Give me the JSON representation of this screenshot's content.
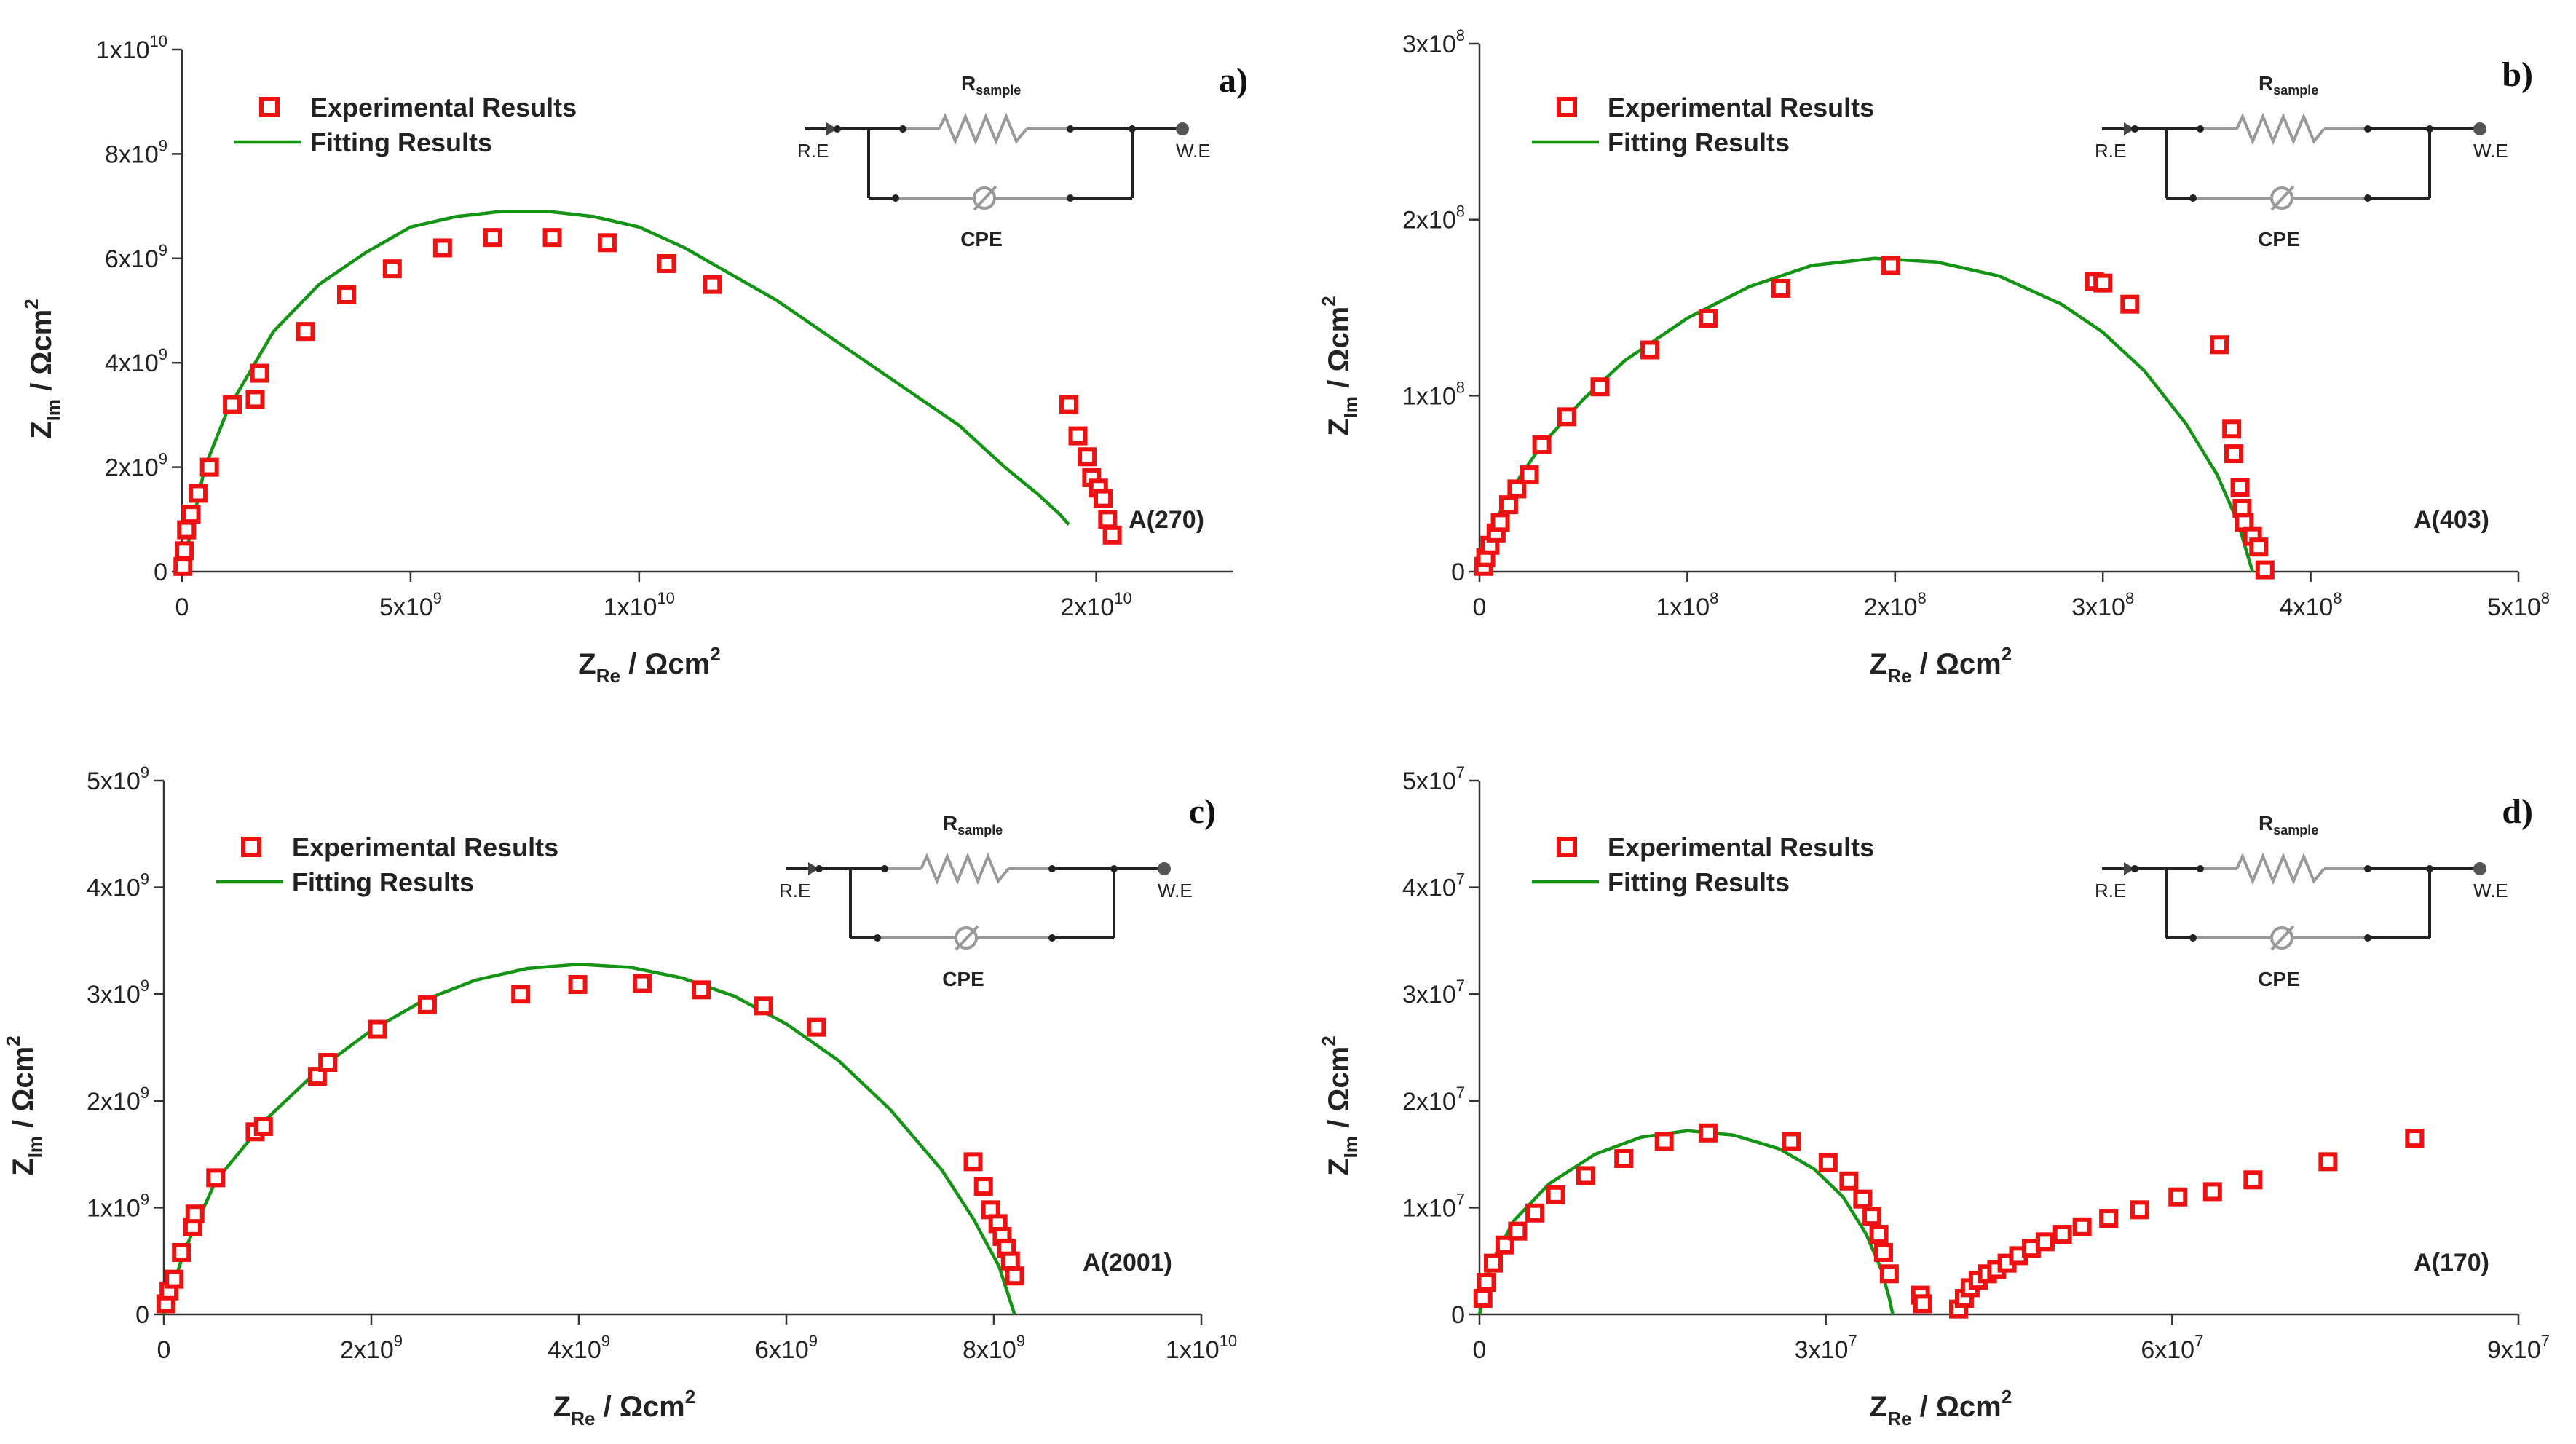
{
  "legend": {
    "experimental": "Experimental Results",
    "fitting": "Fitting Results"
  },
  "axis_titles": {
    "x_main": "Z",
    "x_sub": "Re",
    "x_unit": " / Ωcm",
    "y_main": "Z",
    "y_sub": "Im",
    "y_unit": " / Ωcm",
    "unit_exp": "2"
  },
  "circuit": {
    "left_terminal": "R.E",
    "right_terminal": "W.E",
    "resistor_main": "R",
    "resistor_sub": "sample",
    "cpe_label": "CPE"
  },
  "colors": {
    "marker": "#ee1111",
    "fit": "#149414"
  },
  "chart_data": [
    {
      "type": "scatter",
      "panel_label": "a)",
      "sample_label": "A(270)",
      "xlim": [
        0,
        23000000000.0
      ],
      "ylim": [
        0,
        10000000000.0
      ],
      "xticks": [
        {
          "m": "0",
          "e": ""
        },
        {
          "m": "5x10",
          "e": "9"
        },
        {
          "m": "1x10",
          "e": "10"
        },
        {
          "m": "2x10",
          "e": "10"
        }
      ],
      "xtick_values": [
        0,
        5000000000.0,
        10000000000.0,
        20000000000.0
      ],
      "yticks": [
        {
          "m": "0",
          "e": ""
        },
        {
          "m": "2x10",
          "e": "9"
        },
        {
          "m": "4x10",
          "e": "9"
        },
        {
          "m": "6x10",
          "e": "9"
        },
        {
          "m": "8x10",
          "e": "9"
        },
        {
          "m": "1x10",
          "e": "10"
        }
      ],
      "ytick_values": [
        0,
        2000000000.0,
        4000000000.0,
        6000000000.0,
        8000000000.0,
        10000000000.0
      ],
      "experimental": {
        "x": [
          20000000.0,
          50000000.0,
          100000000.0,
          200000000.0,
          350000000.0,
          600000000.0,
          1100000000.0,
          1600000000.0,
          1700000000.0,
          2700000000.0,
          3600000000.0,
          4600000000.0,
          5700000000.0,
          6800000000.0,
          8100000000.0,
          9300000000.0,
          10600000000.0,
          11600000000.0,
          19400000000.0,
          19600000000.0,
          19800000000.0,
          19900000000.0,
          20050000000.0,
          20150000000.0,
          20250000000.0,
          20350000000.0
        ],
        "y": [
          100000000.0,
          400000000.0,
          800000000.0,
          1100000000.0,
          1500000000.0,
          2000000000.0,
          3200000000.0,
          3300000000.0,
          3800000000.0,
          4600000000.0,
          5300000000.0,
          5800000000.0,
          6200000000.0,
          6400000000.0,
          6400000000.0,
          6300000000.0,
          5900000000.0,
          5500000000.0,
          3200000000.0,
          2600000000.0,
          2200000000.0,
          1800000000.0,
          1600000000.0,
          1400000000.0,
          1000000000.0,
          700000000.0
        ]
      },
      "fit": {
        "x": [
          0,
          500000000.0,
          1000000000.0,
          2000000000.0,
          3000000000.0,
          4000000000.0,
          5000000000.0,
          6000000000.0,
          7000000000.0,
          8000000000.0,
          9000000000.0,
          10000000000.0,
          11000000000.0,
          12000000000.0,
          13000000000.0,
          14000000000.0,
          15000000000.0,
          16000000000.0,
          17000000000.0,
          18000000000.0,
          18700000000.0,
          19200000000.0,
          19400000000.0
        ],
        "y": [
          0,
          2000000000.0,
          3100000000.0,
          4600000000.0,
          5500000000.0,
          6100000000.0,
          6600000000.0,
          6800000000.0,
          6900000000.0,
          6900000000.0,
          6800000000.0,
          6600000000.0,
          6200000000.0,
          5700000000.0,
          5200000000.0,
          4600000000.0,
          4000000000.0,
          3400000000.0,
          2800000000.0,
          2000000000.0,
          1500000000.0,
          1100000000.0,
          900000000.0
        ]
      }
    },
    {
      "type": "scatter",
      "panel_label": "b)",
      "sample_label": "A(403)",
      "xlim": [
        0,
        500000000.0
      ],
      "ylim": [
        0,
        300000000.0
      ],
      "xticks": [
        {
          "m": "0",
          "e": ""
        },
        {
          "m": "1x10",
          "e": "8"
        },
        {
          "m": "2x10",
          "e": "8"
        },
        {
          "m": "3x10",
          "e": "8"
        },
        {
          "m": "4x10",
          "e": "8"
        },
        {
          "m": "5x10",
          "e": "8"
        }
      ],
      "xtick_values": [
        0,
        100000000.0,
        200000000.0,
        300000000.0,
        400000000.0,
        500000000.0
      ],
      "yticks": [
        {
          "m": "0",
          "e": ""
        },
        {
          "m": "1x10",
          "e": "8"
        },
        {
          "m": "2x10",
          "e": "8"
        },
        {
          "m": "3x10",
          "e": "8"
        }
      ],
      "ytick_values": [
        0,
        100000000.0,
        200000000.0,
        300000000.0
      ],
      "experimental": {
        "x": [
          2000000.0,
          3000000.0,
          5000000.0,
          8000000.0,
          10000000.0,
          14000000.0,
          18000000.0,
          24000000.0,
          30000000.0,
          42000000.0,
          58000000.0,
          82000000.0,
          110000000.0,
          145000000.0,
          198000000.0,
          296000000.0,
          300000000.0,
          313000000.0,
          356000000.0,
          362000000.0,
          363000000.0,
          366000000.0,
          367000000.0,
          368000000.0,
          372000000.0,
          375000000.0,
          378000000.0
        ],
        "y": [
          3000000.0,
          8000000.0,
          15000000.0,
          22000000.0,
          28000000.0,
          38000000.0,
          47000000.0,
          55000000.0,
          72000000.0,
          88000000.0,
          105000000.0,
          126000000.0,
          144000000.0,
          161000000.0,
          174000000.0,
          165000000.0,
          164000000.0,
          152000000.0,
          129000000.0,
          81000000.0,
          67000000.0,
          48000000.0,
          36000000.0,
          28000000.0,
          20000000.0,
          14000000.0,
          1000000.0
        ]
      },
      "fit": {
        "x": [
          0,
          5000000.0,
          10000000.0,
          20000000.0,
          30000000.0,
          50000000.0,
          70000000.0,
          100000000.0,
          130000000.0,
          160000000.0,
          190000000.0,
          220000000.0,
          250000000.0,
          280000000.0,
          300000000.0,
          320000000.0,
          340000000.0,
          355000000.0,
          365000000.0,
          372000000.0
        ],
        "y": [
          0,
          20000000.0,
          34000000.0,
          55000000.0,
          72000000.0,
          98000000.0,
          120000000.0,
          144000000.0,
          162000000.0,
          174000000.0,
          178000000.0,
          176000000.0,
          168000000.0,
          152000000.0,
          136000000.0,
          114000000.0,
          84000000.0,
          55000000.0,
          28000000.0,
          0
        ]
      }
    },
    {
      "type": "scatter",
      "panel_label": "c)",
      "sample_label": "A(2001)",
      "xlim": [
        0,
        10000000000.0
      ],
      "ylim": [
        0,
        5000000000.0
      ],
      "xticks": [
        {
          "m": "0",
          "e": ""
        },
        {
          "m": "2x10",
          "e": "9"
        },
        {
          "m": "4x10",
          "e": "9"
        },
        {
          "m": "6x10",
          "e": "9"
        },
        {
          "m": "8x10",
          "e": "9"
        },
        {
          "m": "1x10",
          "e": "10"
        }
      ],
      "xtick_values": [
        0,
        2000000000.0,
        4000000000.0,
        6000000000.0,
        8000000000.0,
        10000000000.0
      ],
      "yticks": [
        {
          "m": "0",
          "e": ""
        },
        {
          "m": "1x10",
          "e": "9"
        },
        {
          "m": "2x10",
          "e": "9"
        },
        {
          "m": "3x10",
          "e": "9"
        },
        {
          "m": "4x10",
          "e": "9"
        },
        {
          "m": "5x10",
          "e": "9"
        }
      ],
      "ytick_values": [
        0,
        1000000000.0,
        2000000000.0,
        3000000000.0,
        4000000000.0,
        5000000000.0
      ],
      "experimental": {
        "x": [
          20000000.0,
          50000000.0,
          100000000.0,
          170000000.0,
          280000000.0,
          300000000.0,
          500000000.0,
          880000000.0,
          960000000.0,
          1480000000.0,
          1580000000.0,
          2060000000.0,
          2540000000.0,
          3440000000.0,
          3990000000.0,
          4610000000.0,
          5180000000.0,
          5780000000.0,
          6290000000.0,
          7800000000.0,
          7900000000.0,
          7970000000.0,
          8040000000.0,
          8080000000.0,
          8120000000.0,
          8160000000.0,
          8200000000.0
        ],
        "y": [
          100000000.0,
          220000000.0,
          330000000.0,
          580000000.0,
          820000000.0,
          940000000.0,
          1280000000.0,
          1710000000.0,
          1760000000.0,
          2230000000.0,
          2360000000.0,
          2670000000.0,
          2900000000.0,
          3000000000.0,
          3090000000.0,
          3100000000.0,
          3040000000.0,
          2890000000.0,
          2690000000.0,
          1430000000.0,
          1200000000.0,
          980000000.0,
          850000000.0,
          730000000.0,
          620000000.0,
          500000000.0,
          360000000.0
        ]
      },
      "fit": {
        "x": [
          0,
          200000000.0,
          500000000.0,
          1000000000.0,
          1500000000.0,
          2000000000.0,
          2500000000.0,
          3000000000.0,
          3500000000.0,
          4000000000.0,
          4500000000.0,
          5000000000.0,
          5500000000.0,
          6000000000.0,
          6500000000.0,
          7000000000.0,
          7500000000.0,
          7800000000.0,
          8050000000.0,
          8200000000.0
        ],
        "y": [
          0,
          600000000.0,
          1250000000.0,
          1840000000.0,
          2300000000.0,
          2660000000.0,
          2940000000.0,
          3130000000.0,
          3240000000.0,
          3280000000.0,
          3250000000.0,
          3150000000.0,
          2980000000.0,
          2720000000.0,
          2380000000.0,
          1920000000.0,
          1350000000.0,
          900000000.0,
          450000000.0,
          0
        ]
      }
    },
    {
      "type": "scatter",
      "panel_label": "d)",
      "sample_label": "A(170)",
      "xlim": [
        0,
        90000000.0
      ],
      "ylim": [
        0,
        50000000.0
      ],
      "xticks": [
        {
          "m": "0",
          "e": ""
        },
        {
          "m": "3x10",
          "e": "7"
        },
        {
          "m": "6x10",
          "e": "7"
        },
        {
          "m": "9x10",
          "e": "7"
        }
      ],
      "xtick_values": [
        0,
        30000000.0,
        60000000.0,
        90000000.0
      ],
      "yticks": [
        {
          "m": "0",
          "e": ""
        },
        {
          "m": "1x10",
          "e": "7"
        },
        {
          "m": "2x10",
          "e": "7"
        },
        {
          "m": "3x10",
          "e": "7"
        },
        {
          "m": "4x10",
          "e": "7"
        },
        {
          "m": "5x10",
          "e": "7"
        }
      ],
      "ytick_values": [
        0,
        10000000.0,
        20000000.0,
        30000000.0,
        40000000.0,
        50000000.0
      ],
      "experimental": {
        "x": [
          300000.0,
          600000.0,
          1200000.0,
          2200000.0,
          3300000.0,
          4800000.0,
          6600000.0,
          9200000.0,
          12500000.0,
          16000000.0,
          19800000.0,
          27000000.0,
          30200000.0,
          32000000.0,
          33200000.0,
          34000000.0,
          34600000.0,
          35000000.0,
          35500000.0,
          38200000.0,
          38400000.0,
          41500000.0,
          42000000.0,
          42500000.0,
          43200000.0,
          44000000.0,
          44800000.0,
          45700000.0,
          46700000.0,
          47800000.0,
          49000000.0,
          50500000.0,
          52200000.0,
          54500000.0,
          57200000.0,
          60500000.0,
          63500000.0,
          67000000.0,
          73500000.0,
          81000000.0
        ],
        "y": [
          1500000.0,
          3000000.0,
          4800000.0,
          6500000.0,
          7800000.0,
          9500000.0,
          11200000.0,
          13000000.0,
          14600000.0,
          16200000.0,
          17000000.0,
          16200000.0,
          14200000.0,
          12500000.0,
          10800000.0,
          9200000.0,
          7500000.0,
          5800000.0,
          3800000.0,
          1800000.0,
          1000000.0,
          500000.0,
          1500000.0,
          2500000.0,
          3200000.0,
          3800000.0,
          4200000.0,
          4800000.0,
          5500000.0,
          6200000.0,
          6800000.0,
          7500000.0,
          8200000.0,
          9000000.0,
          9800000.0,
          11000000.0,
          11500000.0,
          12600000.0,
          14300000.0,
          16500000.0
        ]
      },
      "fit": {
        "x": [
          0,
          1000000.0,
          3000000.0,
          6000000.0,
          10000000.0,
          14000000.0,
          18000000.0,
          22000000.0,
          26000000.0,
          29000000.0,
          31500000.0,
          33500000.0,
          34800000.0,
          35500000.0,
          35800000.0
        ],
        "y": [
          0,
          4800000.0,
          8800000.0,
          12200000.0,
          15000000.0,
          16600000.0,
          17200000.0,
          16800000.0,
          15500000.0,
          13600000.0,
          11000000.0,
          7500000.0,
          4200000.0,
          1500000.0,
          0
        ]
      }
    }
  ]
}
